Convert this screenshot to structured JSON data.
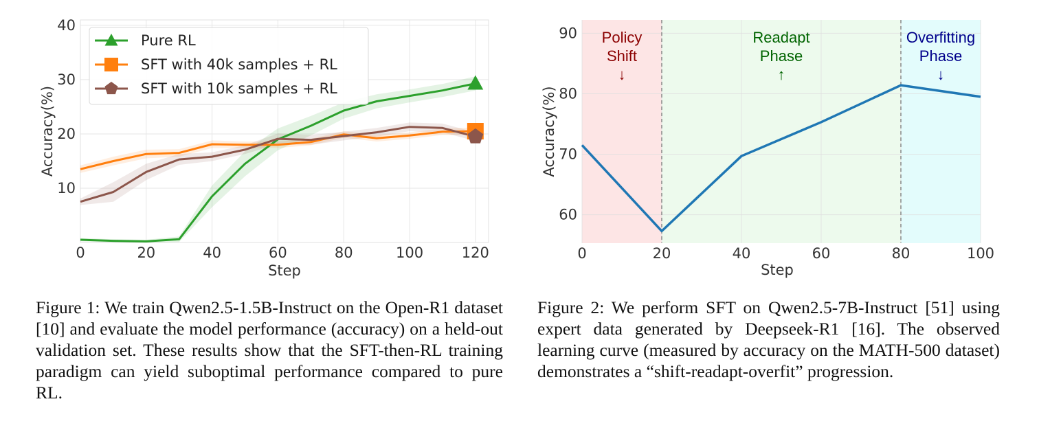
{
  "chart_data": [
    {
      "type": "line",
      "xlabel": "Step",
      "ylabel": "Accuracy(%)",
      "xlim": [
        0,
        124
      ],
      "ylim": [
        0,
        41
      ],
      "xticks": [
        0,
        20,
        40,
        60,
        80,
        100,
        120
      ],
      "yticks": [
        10,
        20,
        30,
        40
      ],
      "grid": true,
      "legend_position": "upper-left",
      "x": [
        0,
        10,
        20,
        30,
        40,
        50,
        60,
        70,
        80,
        90,
        100,
        110,
        120
      ],
      "series": [
        {
          "name": "Pure RL",
          "color": "#2ca02c",
          "marker": "triangle",
          "values": [
            0.5,
            0.3,
            0.2,
            0.6,
            8.5,
            14.5,
            19.0,
            21.5,
            24.3,
            26.0,
            27.0,
            28.0,
            29.3
          ],
          "band": [
            0.3,
            0.3,
            0.3,
            0.5,
            2.0,
            2.3,
            2.0,
            1.8,
            1.5,
            1.3,
            1.2,
            1.2,
            1.3
          ]
        },
        {
          "name": "SFT with 40k samples + RL",
          "color": "#ff7f0e",
          "marker": "square",
          "values": [
            13.5,
            15.0,
            16.3,
            16.5,
            18.1,
            18.0,
            18.0,
            18.5,
            19.9,
            19.2,
            19.7,
            20.4,
            20.5
          ],
          "band": [
            0.7,
            0.8,
            0.8,
            0.7,
            0.7,
            0.6,
            0.6,
            0.6,
            0.6,
            0.6,
            0.6,
            0.6,
            0.7
          ]
        },
        {
          "name": "SFT with 10k samples + RL",
          "color": "#8c564b",
          "marker": "pentagon",
          "values": [
            7.5,
            9.3,
            13.0,
            15.3,
            15.8,
            17.1,
            19.1,
            18.9,
            19.6,
            20.3,
            21.3,
            21.1,
            19.5
          ],
          "band": [
            0.6,
            1.8,
            1.5,
            1.0,
            0.8,
            0.8,
            1.0,
            0.9,
            0.8,
            0.8,
            0.8,
            0.8,
            0.8
          ]
        }
      ]
    },
    {
      "type": "line",
      "xlabel": "Step",
      "ylabel": "Accuracy(%)",
      "xlim": [
        0,
        100
      ],
      "ylim": [
        55.3,
        92.2
      ],
      "xticks": [
        0,
        20,
        40,
        60,
        80,
        100
      ],
      "yticks": [
        60,
        70,
        80,
        90
      ],
      "grid": true,
      "x": [
        0,
        20,
        40,
        60,
        80,
        100
      ],
      "series": [
        {
          "color": "#1f77b4",
          "values": [
            71.5,
            57.3,
            69.7,
            75.3,
            81.4,
            79.5
          ]
        }
      ],
      "regions": [
        {
          "x0": 0,
          "x1": 20,
          "fill": "#fde5e5",
          "label_lines": [
            "Policy",
            "Shift",
            "↓"
          ],
          "label_color": "#8b0000"
        },
        {
          "x0": 20,
          "x1": 80,
          "fill": "#edfaed",
          "label_lines": [
            "Readapt",
            "Phase",
            "↑"
          ],
          "label_color": "#006400"
        },
        {
          "x0": 80,
          "x1": 100,
          "fill": "#e3fcfc",
          "label_lines": [
            "Overfitting",
            "Phase",
            "↓"
          ],
          "label_color": "#00008b"
        }
      ],
      "dividers": [
        20,
        80
      ]
    }
  ],
  "captions": [
    "Figure 1: We train Qwen2.5-1.5B-Instruct on the Open-R1 dataset [10] and evaluate the model performance (accuracy) on a held-out validation set. These results show that the SFT-then-RL training paradigm can yield suboptimal performance compared to pure RL.",
    "Figure 2: We perform SFT on Qwen2.5-7B-Instruct [51] using expert data generated by Deepseek-R1 [16]. The observed learning curve (measured by accuracy on the MATH-500 dataset) demonstrates a “shift-readapt-overfit” progression."
  ]
}
